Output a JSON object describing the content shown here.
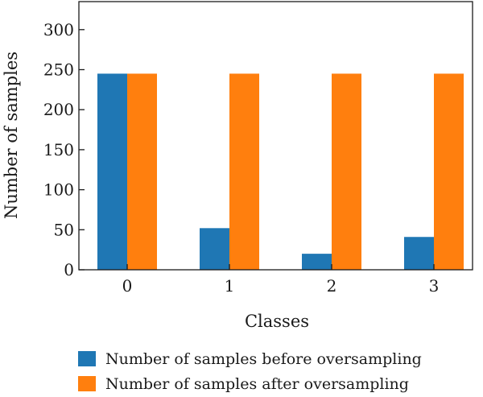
{
  "chart_data": {
    "type": "bar",
    "categories": [
      "0",
      "1",
      "2",
      "3"
    ],
    "series": [
      {
        "name": "Number of samples before oversampling",
        "values": [
          245,
          52,
          20,
          41
        ],
        "color": "#1f77b4"
      },
      {
        "name": "Number of samples after oversampling",
        "values": [
          245,
          245,
          245,
          245
        ],
        "color": "#ff7f0e"
      }
    ],
    "title": "",
    "xlabel": "Classes",
    "ylabel": "Number of samples",
    "ylim": [
      0,
      335
    ],
    "yticks": [
      0,
      50,
      100,
      150,
      200,
      250,
      300
    ],
    "grid": false,
    "legend_position": "bottom"
  }
}
